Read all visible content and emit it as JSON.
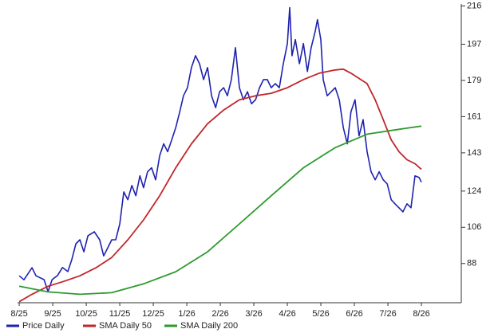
{
  "chart_data": {
    "type": "line",
    "xlim": [
      -0.05,
      13.19
    ],
    "xticks": [
      {
        "value": 0,
        "label": "8/25"
      },
      {
        "value": 1,
        "label": "9/25"
      },
      {
        "value": 2,
        "label": "10/25"
      },
      {
        "value": 3,
        "label": "11/25"
      },
      {
        "value": 4,
        "label": "12/25"
      },
      {
        "value": 5,
        "label": "1/26"
      },
      {
        "value": 6,
        "label": "2/26"
      },
      {
        "value": 7,
        "label": "3/26"
      },
      {
        "value": 8,
        "label": "4/26"
      },
      {
        "value": 9,
        "label": "5/26"
      },
      {
        "value": 10,
        "label": "6/26"
      },
      {
        "value": 11,
        "label": "7/26"
      },
      {
        "value": 12,
        "label": "8/26"
      }
    ],
    "ylim": [
      68.5,
      217
    ],
    "yticks": [
      88,
      106,
      124,
      143,
      161,
      179,
      197,
      216
    ],
    "y_axis_side": "right",
    "grid": false,
    "series": [
      {
        "name": "Price Daily",
        "color": "#1f22b0",
        "x": [
          0,
          0.14,
          0.38,
          0.5,
          0.74,
          0.86,
          0.98,
          1.14,
          1.29,
          1.45,
          1.57,
          1.69,
          1.81,
          1.93,
          2.05,
          2.24,
          2.4,
          2.52,
          2.64,
          2.76,
          2.88,
          3.0,
          3.12,
          3.24,
          3.36,
          3.48,
          3.6,
          3.71,
          3.83,
          3.95,
          4.07,
          4.19,
          4.31,
          4.43,
          4.55,
          4.67,
          4.79,
          4.9,
          5.02,
          5.14,
          5.26,
          5.38,
          5.5,
          5.62,
          5.74,
          5.86,
          5.98,
          6.1,
          6.21,
          6.33,
          6.45,
          6.57,
          6.69,
          6.81,
          6.93,
          7.05,
          7.17,
          7.29,
          7.4,
          7.52,
          7.64,
          7.76,
          7.88,
          8.0,
          8.07,
          8.14,
          8.24,
          8.36,
          8.48,
          8.6,
          8.71,
          8.83,
          8.9,
          9.0,
          9.07,
          9.19,
          9.31,
          9.43,
          9.55,
          9.67,
          9.79,
          9.9,
          10.02,
          10.14,
          10.26,
          10.38,
          10.5,
          10.62,
          10.74,
          10.86,
          10.98,
          11.1,
          11.21,
          11.33,
          11.45,
          11.57,
          11.69,
          11.81,
          11.93,
          12.0
        ],
        "values": [
          81.9,
          79.9,
          85.9,
          81.9,
          80.0,
          74.0,
          80.0,
          82.0,
          86.0,
          84.0,
          90.0,
          97.8,
          99.8,
          93.8,
          101.8,
          103.8,
          99.8,
          91.8,
          95.8,
          99.8,
          99.8,
          107.7,
          123.6,
          119.7,
          126.8,
          121.7,
          131.6,
          125.7,
          133.6,
          135.6,
          129.6,
          141.6,
          147.5,
          143.6,
          149.5,
          155.5,
          163.5,
          171.4,
          175.4,
          185.4,
          191.3,
          187.3,
          179.4,
          185.4,
          171.4,
          165.5,
          173.4,
          175.4,
          171.4,
          179.4,
          195.3,
          175.4,
          169.4,
          173.4,
          167.4,
          169.4,
          175.4,
          179.4,
          179.4,
          175.4,
          177.4,
          175.4,
          187.3,
          197.3,
          215.2,
          191.3,
          199.3,
          187.3,
          197.3,
          183.4,
          195.3,
          203.3,
          209.2,
          199.3,
          179.4,
          171.4,
          173.4,
          175.4,
          169.4,
          155.5,
          147.5,
          163.5,
          169.4,
          151.5,
          159.5,
          143.6,
          133.6,
          129.6,
          133.6,
          129.6,
          127.6,
          119.7,
          117.7,
          115.7,
          113.7,
          117.7,
          115.7,
          131.6,
          130.8,
          128.4
        ]
      },
      {
        "name": "SMA Daily 50",
        "color": "#c0262a",
        "x": [
          0,
          0.38,
          0.86,
          1.33,
          1.81,
          2.29,
          2.76,
          3.24,
          3.71,
          4.19,
          4.67,
          5.14,
          5.62,
          6.1,
          6.57,
          7.05,
          7.52,
          8.0,
          8.48,
          8.95,
          9.43,
          9.67,
          9.9,
          10.38,
          10.62,
          10.86,
          11.1,
          11.33,
          11.57,
          11.81,
          12.0
        ],
        "values": [
          69,
          72.7,
          76.7,
          79.1,
          81.9,
          85.9,
          91.0,
          99.8,
          109.7,
          121.7,
          135.6,
          147.5,
          157.5,
          164.3,
          169.4,
          171.4,
          172.6,
          175.4,
          179.4,
          182.6,
          184.2,
          184.6,
          182.6,
          177.4,
          169.4,
          159.5,
          149.5,
          143.6,
          139.6,
          137.6,
          134.8
        ]
      },
      {
        "name": "SMA Daily 200",
        "color": "#2e9a2e",
        "x": [
          0,
          0.86,
          1.81,
          2.76,
          3.71,
          4.67,
          5.62,
          6.57,
          7.52,
          8.48,
          9.43,
          10.38,
          11.33,
          12.0
        ],
        "values": [
          76.7,
          73.9,
          72.7,
          73.5,
          77.9,
          83.9,
          93.8,
          107.7,
          121.7,
          135.6,
          145.6,
          152.3,
          154.7,
          156.3
        ]
      }
    ]
  }
}
